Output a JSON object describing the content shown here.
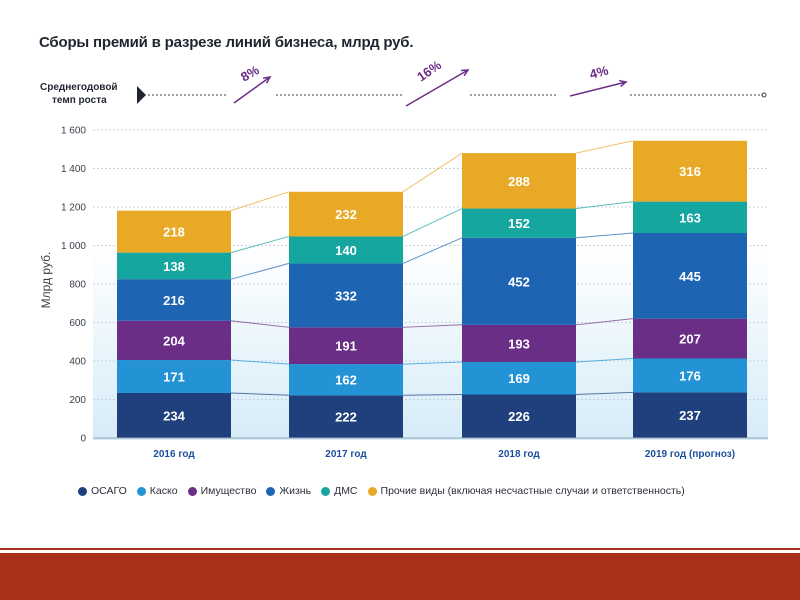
{
  "chart_data": {
    "type": "bar",
    "stacked": true,
    "title": "Сборы премий в разрезе линий бизнеса, млрд руб.",
    "ylabel": "Млрд руб.",
    "xlabel": "",
    "ylim": [
      0,
      1600
    ],
    "yticks": [
      "0",
      "200",
      "400",
      "600",
      "800",
      "1 000",
      "1 200",
      "1 400",
      "1 600"
    ],
    "ytick_values": [
      0,
      200,
      400,
      600,
      800,
      1000,
      1200,
      1400,
      1600
    ],
    "grid": true,
    "legend_position": "bottom",
    "categories": [
      "2016 год",
      "2017 год",
      "2018 год",
      "2019 год (прогноз)"
    ],
    "series": [
      {
        "name": "ОСАГО",
        "color": "#1f3f7d",
        "values": [
          234,
          222,
          226,
          237
        ]
      },
      {
        "name": "Каско",
        "color": "#2393d6",
        "values": [
          171,
          162,
          169,
          176
        ]
      },
      {
        "name": "Имущество",
        "color": "#6b2e86",
        "values": [
          204,
          191,
          193,
          207
        ]
      },
      {
        "name": "Жизнь",
        "color": "#1d64b3",
        "values": [
          216,
          332,
          452,
          445
        ]
      },
      {
        "name": "ДМС",
        "color": "#16a6a0",
        "values": [
          138,
          140,
          152,
          163
        ]
      },
      {
        "name": "Прочие виды (включая несчастные случаи и ответственность)",
        "color": "#e8a927",
        "values": [
          218,
          232,
          288,
          316
        ]
      }
    ],
    "growth": {
      "label_line1": "Среднегодовой",
      "label_line2": "темп роста",
      "values": [
        "8%",
        "16%",
        "4%"
      ]
    }
  }
}
